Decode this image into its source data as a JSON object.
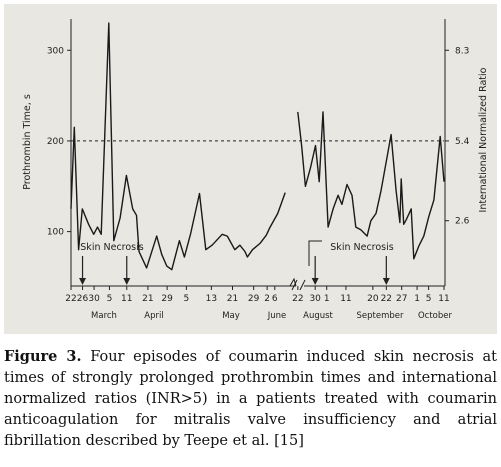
{
  "chart_data": {
    "type": "line",
    "ylabel": "Prothrombin Time, s",
    "ylabel_right": "International Normalized Ratio",
    "y_ticks": [
      100,
      200,
      300
    ],
    "y_right_ticks": [
      "2.6",
      "5.4",
      "8.3"
    ],
    "ylim": [
      40,
      340
    ],
    "reference_line": {
      "y": 200,
      "label": "5.4",
      "style": "dashed"
    },
    "x_ticks": [
      "22",
      "26",
      "30",
      "5",
      "11",
      "21",
      "29",
      "5",
      "13",
      "21",
      "29",
      "2",
      "6",
      "22",
      "30",
      "1",
      "11",
      "20",
      "22",
      "27",
      "1",
      "5",
      "11"
    ],
    "months": [
      "March",
      "April",
      "May",
      "June",
      "August",
      "September",
      "October"
    ],
    "annotations": [
      {
        "text": "Skin Necrosis",
        "arrows_at": [
          "26",
          "11"
        ]
      },
      {
        "text": "Skin Necrosis",
        "arrows_at": [
          "30",
          "22"
        ]
      }
    ],
    "series": [
      {
        "segment": "March–June",
        "points": [
          [
            0,
            125
          ],
          [
            1.3,
            215
          ],
          [
            3,
            80
          ],
          [
            4.5,
            125
          ],
          [
            7,
            108
          ],
          [
            9,
            97
          ],
          [
            10.5,
            105
          ],
          [
            12,
            97
          ],
          [
            15,
            330
          ],
          [
            17,
            90
          ],
          [
            19.5,
            115
          ],
          [
            22,
            162
          ],
          [
            24.5,
            125
          ],
          [
            26,
            118
          ],
          [
            27,
            78
          ],
          [
            30,
            60
          ],
          [
            34,
            95
          ],
          [
            36,
            75
          ],
          [
            38,
            62
          ],
          [
            40,
            58
          ],
          [
            43,
            90
          ],
          [
            45,
            72
          ],
          [
            47.5,
            98
          ],
          [
            51,
            142
          ],
          [
            53.5,
            80
          ],
          [
            56,
            85
          ],
          [
            60,
            97
          ],
          [
            62,
            95
          ],
          [
            65,
            80
          ],
          [
            67,
            85
          ],
          [
            69,
            78
          ],
          [
            70,
            72
          ],
          [
            72,
            80
          ],
          [
            75,
            87
          ],
          [
            77.5,
            96
          ],
          [
            79,
            105
          ],
          [
            82,
            120
          ],
          [
            85,
            143
          ]
        ]
      },
      {
        "segment": "August–October",
        "points": [
          [
            90,
            232
          ],
          [
            91.5,
            195
          ],
          [
            93,
            150
          ],
          [
            95,
            170
          ],
          [
            97,
            195
          ],
          [
            98.5,
            155
          ],
          [
            100,
            232
          ],
          [
            102,
            105
          ],
          [
            104,
            125
          ],
          [
            106,
            140
          ],
          [
            107.5,
            130
          ],
          [
            109.5,
            152
          ],
          [
            111.5,
            140
          ],
          [
            113,
            105
          ],
          [
            115,
            102
          ],
          [
            117.5,
            95
          ],
          [
            119,
            112
          ],
          [
            121,
            120
          ],
          [
            123,
            145
          ],
          [
            127,
            207
          ],
          [
            129,
            145
          ],
          [
            130.5,
            110
          ],
          [
            131,
            158
          ],
          [
            132,
            108
          ],
          [
            133,
            113
          ],
          [
            135,
            125
          ],
          [
            136,
            70
          ],
          [
            138,
            84
          ],
          [
            140,
            95
          ],
          [
            142,
            117
          ],
          [
            144,
            135
          ],
          [
            146.5,
            205
          ],
          [
            148,
            155
          ]
        ]
      }
    ]
  },
  "caption": {
    "label": "Figure 3.",
    "text": " Four episodes of coumarin induced skin necrosis at times of strongly prolonged prothrombin times and international normalized ratios (INR>5) in a patients treated with coumarin anticoagulation for mitralis valve insufficiency and atrial fibrillation described by Teepe et al. [15]"
  }
}
